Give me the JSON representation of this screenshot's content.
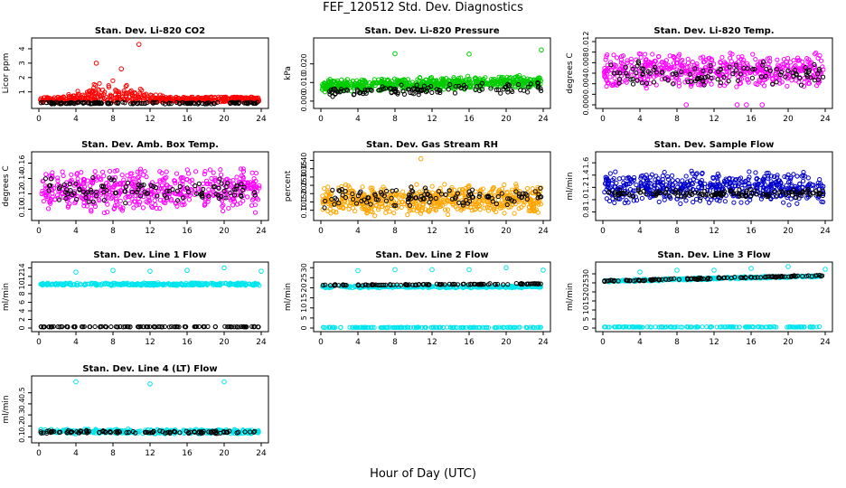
{
  "page": {
    "title": "FEF_120512  Std. Dev. Diagnostics",
    "x_axis_title": "Hour of Day (UTC)"
  },
  "chart_data": [
    {
      "type": "scatter",
      "title": "Stan. Dev. Li-820 CO2",
      "xlabel": "",
      "ylabel": "Licor ppm",
      "xlim": [
        0,
        24
      ],
      "ylim": [
        0.1,
        4.5
      ],
      "xticks": [
        0,
        4,
        8,
        12,
        16,
        20,
        24
      ],
      "yticks": [
        1,
        2,
        3,
        4
      ],
      "grid": false,
      "series": [
        {
          "color": "#ff0000",
          "pattern": "burst",
          "base": 0.3,
          "spread": 0.35,
          "hi_start": 2,
          "hi_end": 14,
          "hi_spread": 1.4,
          "points": 500,
          "outliers": [
            {
              "x": 6.2,
              "y": 3.0
            },
            {
              "x": 8.9,
              "y": 2.6
            },
            {
              "x": 10.8,
              "y": 4.3
            }
          ]
        },
        {
          "color": "#000000",
          "pattern": "flat",
          "base": 0.22,
          "spread": 0.06,
          "points": 140
        }
      ]
    },
    {
      "type": "scatter",
      "title": "Stan. Dev. Li-820 Pressure",
      "xlabel": "",
      "ylabel": "kPa",
      "xlim": [
        0,
        24
      ],
      "ylim": [
        -0.002,
        0.032
      ],
      "xticks": [
        0,
        4,
        8,
        12,
        16,
        20,
        24
      ],
      "yticks": [
        0.0,
        0.01,
        0.02
      ],
      "ytick_labels": [
        "0.000",
        "0.010",
        "0.020"
      ],
      "grid": false,
      "series": [
        {
          "color": "#00cc00",
          "pattern": "band",
          "base": 0.008,
          "spread": 0.004,
          "trend": 0.0001,
          "points": 620,
          "outliers": [
            {
              "x": 8.0,
              "y": 0.0255
            },
            {
              "x": 16.0,
              "y": 0.0253
            },
            {
              "x": 23.8,
              "y": 0.0275
            }
          ]
        },
        {
          "color": "#000000",
          "pattern": "band",
          "base": 0.005,
          "spread": 0.003,
          "trend": 0.0001,
          "points": 120
        }
      ]
    },
    {
      "type": "scatter",
      "title": "Stan. Dev. Li-820 Temp.",
      "xlabel": "",
      "ylabel": "degrees C",
      "xlim": [
        0,
        24
      ],
      "ylim": [
        0.0,
        0.012
      ],
      "xticks": [
        0,
        4,
        8,
        12,
        16,
        20,
        24
      ],
      "yticks": [
        0.0,
        0.002,
        0.004,
        0.006,
        0.008,
        0.01,
        0.012
      ],
      "ytick_labels": [
        "0.000",
        "",
        "0.004",
        "",
        "0.008",
        "",
        "0.012"
      ],
      "grid": false,
      "series": [
        {
          "color": "#ff00ff",
          "pattern": "band",
          "base": 0.0065,
          "spread": 0.0035,
          "points": 520,
          "outliers": [
            {
              "x": 9.0,
              "y": 0.0
            },
            {
              "x": 14.5,
              "y": 0.0
            },
            {
              "x": 15.5,
              "y": 0.0
            },
            {
              "x": 17.2,
              "y": 0.0
            }
          ]
        },
        {
          "color": "#000000",
          "pattern": "band",
          "base": 0.0058,
          "spread": 0.0025,
          "points": 110
        }
      ]
    },
    {
      "type": "scatter",
      "title": "Stan. Dev. Amb. Box Temp.",
      "xlabel": "",
      "ylabel": "degrees C",
      "xlim": [
        0,
        24
      ],
      "ylim": [
        0.09,
        0.17
      ],
      "xticks": [
        0,
        4,
        8,
        12,
        16,
        20,
        24
      ],
      "yticks": [
        0.1,
        0.12,
        0.14,
        0.16
      ],
      "ytick_labels": [
        "0.10",
        "0.12",
        "0.14",
        "0.16"
      ],
      "grid": false,
      "series": [
        {
          "color": "#ff00ff",
          "pattern": "band",
          "base": 0.125,
          "spread": 0.03,
          "points": 520
        },
        {
          "color": "#000000",
          "pattern": "band",
          "base": 0.125,
          "spread": 0.018,
          "points": 110
        }
      ]
    },
    {
      "type": "scatter",
      "title": "Stan. Dev. Gas Stream RH",
      "xlabel": "",
      "ylabel": "percent",
      "xlim": [
        0,
        24
      ],
      "ylim": [
        0.06,
        0.43
      ],
      "xticks": [
        0,
        4,
        8,
        12,
        16,
        20,
        24
      ],
      "yticks": [
        0.1,
        0.15,
        0.2,
        0.25,
        0.3,
        0.35,
        0.4
      ],
      "ytick_labels": [
        "0.10",
        "0.15",
        "0.20",
        "0.25",
        "0.30",
        "0.35",
        "0.40"
      ],
      "grid": false,
      "series": [
        {
          "color": "#ffa500",
          "pattern": "band",
          "base": 0.16,
          "spread": 0.1,
          "points": 600,
          "outliers": [
            {
              "x": 10.8,
              "y": 0.41
            }
          ]
        },
        {
          "color": "#000000",
          "pattern": "band",
          "base": 0.18,
          "spread": 0.07,
          "points": 120
        }
      ]
    },
    {
      "type": "scatter",
      "title": "Stan. Dev. Sample Flow",
      "xlabel": "",
      "ylabel": "ml/min",
      "xlim": [
        0,
        24
      ],
      "ylim": [
        0.72,
        1.72
      ],
      "xticks": [
        0,
        4,
        8,
        12,
        16,
        20,
        24
      ],
      "yticks": [
        0.8,
        1.0,
        1.2,
        1.4,
        1.6
      ],
      "ytick_labels": [
        "0.8",
        "1.0",
        "1.2",
        "1.4",
        "1.6"
      ],
      "grid": false,
      "series": [
        {
          "color": "#0000cc",
          "pattern": "band",
          "base": 1.2,
          "spread": 0.3,
          "points": 520
        },
        {
          "color": "#000000",
          "pattern": "band",
          "base": 1.1,
          "spread": 0.08,
          "points": 130
        }
      ]
    },
    {
      "type": "scatter",
      "title": "Stan. Dev. Line 1 Flow",
      "xlabel": "",
      "ylabel": "ml/min",
      "xlim": [
        0,
        24
      ],
      "ylim": [
        0,
        14.5
      ],
      "xticks": [
        0,
        4,
        8,
        12,
        16,
        20,
        24
      ],
      "yticks": [
        0,
        2,
        4,
        6,
        8,
        10,
        12,
        14
      ],
      "grid": false,
      "series": [
        {
          "color": "#00e5ee",
          "pattern": "band",
          "base": 10.2,
          "spread": 0.35,
          "points": 320,
          "outliers": [
            {
              "x": 4.0,
              "y": 13.0
            },
            {
              "x": 8.0,
              "y": 13.4
            },
            {
              "x": 12.0,
              "y": 13.2
            },
            {
              "x": 16.0,
              "y": 13.4
            },
            {
              "x": 20.0,
              "y": 14.0
            },
            {
              "x": 24.0,
              "y": 13.2
            }
          ]
        },
        {
          "color": "#000000",
          "pattern": "flat",
          "base": 0.3,
          "spread": 0.05,
          "points": 110
        }
      ]
    },
    {
      "type": "scatter",
      "title": "Stan. Dev. Line 2 Flow",
      "xlabel": "",
      "ylabel": "ml/min",
      "xlim": [
        0,
        24
      ],
      "ylim": [
        0,
        31
      ],
      "xticks": [
        0,
        4,
        8,
        12,
        16,
        20,
        24
      ],
      "yticks": [
        0,
        5,
        10,
        15,
        20,
        25,
        30
      ],
      "grid": false,
      "series": [
        {
          "color": "#00e5ee",
          "pattern": "band",
          "base": 20.5,
          "spread": 0.6,
          "points": 320,
          "outliers": [
            {
              "x": 4.0,
              "y": 28.5
            },
            {
              "x": 8.0,
              "y": 29.0
            },
            {
              "x": 12.0,
              "y": 29.0
            },
            {
              "x": 16.0,
              "y": 29.0
            },
            {
              "x": 20.0,
              "y": 30.0
            },
            {
              "x": 24.0,
              "y": 28.8
            }
          ]
        },
        {
          "color": "#00e5ee",
          "pattern": "flat",
          "base": 0.3,
          "spread": 0.1,
          "points": 160
        },
        {
          "color": "#000000",
          "pattern": "band",
          "base": 21.3,
          "spread": 0.3,
          "trend": 0.03,
          "points": 110
        }
      ]
    },
    {
      "type": "scatter",
      "title": "Stan. Dev. Line 3 Flow",
      "xlabel": "",
      "ylabel": "ml/min",
      "xlim": [
        0,
        24
      ],
      "ylim": [
        0,
        34.5
      ],
      "xticks": [
        0,
        4,
        8,
        12,
        16,
        20,
        24
      ],
      "yticks": [
        0,
        5,
        10,
        15,
        20,
        25,
        30
      ],
      "grid": false,
      "series": [
        {
          "color": "#00e5ee",
          "pattern": "band",
          "base": 26.0,
          "spread": 0.7,
          "trend": 0.12,
          "points": 320,
          "outliers": [
            {
              "x": 4.0,
              "y": 31.0
            },
            {
              "x": 8.0,
              "y": 32.0
            },
            {
              "x": 12.0,
              "y": 32.0
            },
            {
              "x": 16.0,
              "y": 33.0
            },
            {
              "x": 20.0,
              "y": 34.0
            },
            {
              "x": 24.0,
              "y": 32.5
            }
          ]
        },
        {
          "color": "#00e5ee",
          "pattern": "flat",
          "base": 0.6,
          "spread": 0.15,
          "points": 160
        },
        {
          "color": "#000000",
          "pattern": "band",
          "base": 26.0,
          "spread": 0.5,
          "trend": 0.13,
          "points": 120
        }
      ]
    },
    {
      "type": "scatter",
      "title": "Stan. Dev. Line 4 (LT) Flow",
      "xlabel": "",
      "ylabel": "ml/min",
      "xlim": [
        0,
        24
      ],
      "ylim": [
        0.08,
        0.62
      ],
      "xticks": [
        0,
        4,
        8,
        12,
        16,
        20,
        24
      ],
      "yticks": [
        0.1,
        0.2,
        0.3,
        0.4,
        0.5
      ],
      "ytick_labels": [
        "0.1",
        "0.2",
        "0.3",
        "0.4",
        "0.5"
      ],
      "grid": false,
      "series": [
        {
          "color": "#00e5ee",
          "pattern": "band",
          "base": 0.15,
          "spread": 0.025,
          "points": 320,
          "outliers": [
            {
              "x": 4.0,
              "y": 0.6
            },
            {
              "x": 12.0,
              "y": 0.58
            },
            {
              "x": 20.0,
              "y": 0.6
            }
          ]
        },
        {
          "color": "#000000",
          "pattern": "band",
          "base": 0.145,
          "spread": 0.015,
          "points": 110
        }
      ]
    }
  ]
}
